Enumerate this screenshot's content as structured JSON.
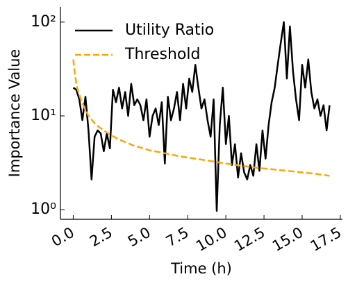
{
  "chart_data": {
    "type": "line",
    "x_label": "Time (h)",
    "y_label": "Importance Value",
    "log_y": true,
    "legend": "upper left",
    "xlim": [
      -0.84,
      17.64
    ],
    "ylim": [
      0.79,
      145
    ],
    "xticks": [
      {
        "value": 0,
        "label": "0.0"
      },
      2.5,
      {
        "value": 5,
        "label": "5.0"
      },
      7.5,
      {
        "value": 10,
        "label": "10.0"
      },
      12.5,
      {
        "value": 15,
        "label": "15.0"
      },
      17.5
    ],
    "yticks": [
      {
        "value": 1,
        "label": "10⁰"
      },
      {
        "value": 10,
        "label": "10¹"
      },
      {
        "value": 100,
        "label": "10²"
      }
    ],
    "series": [
      {
        "name": "Utility Ratio",
        "color": "#000000",
        "dash": false,
        "x": [
          0,
          0.2,
          0.4,
          0.6,
          0.8,
          1.0,
          1.2,
          1.4,
          1.6,
          1.8,
          2.0,
          2.2,
          2.4,
          2.6,
          2.8,
          3.0,
          3.2,
          3.4,
          3.6,
          3.8,
          4.0,
          4.2,
          4.4,
          4.6,
          4.8,
          5.0,
          5.2,
          5.4,
          5.6,
          5.8,
          6.0,
          6.2,
          6.4,
          6.6,
          6.8,
          7.0,
          7.2,
          7.4,
          7.6,
          7.8,
          8.0,
          8.2,
          8.4,
          8.6,
          8.8,
          9.0,
          9.2,
          9.4,
          9.6,
          9.8,
          10.0,
          10.2,
          10.4,
          10.6,
          10.8,
          11.0,
          11.2,
          11.4,
          11.6,
          11.8,
          12.0,
          12.2,
          12.4,
          12.6,
          12.8,
          13.0,
          13.2,
          13.4,
          13.6,
          13.8,
          14.0,
          14.2,
          14.4,
          14.6,
          14.8,
          15.0,
          15.2,
          15.4,
          15.6,
          15.8,
          16.0,
          16.2,
          16.4,
          16.6,
          16.8
        ],
        "values": [
          20,
          19,
          15,
          9,
          16,
          7,
          2.1,
          6,
          7,
          6.5,
          4.2,
          6.5,
          4.5,
          19,
          14,
          20,
          12,
          18,
          10,
          22,
          13,
          15,
          13,
          9,
          15,
          6,
          10,
          12,
          8,
          14,
          3.1,
          16,
          9,
          12,
          18,
          9,
          22,
          12,
          25,
          18,
          35,
          20,
          12,
          15,
          9,
          6,
          15,
          0.97,
          8,
          20,
          5,
          10,
          3,
          5,
          2.2,
          4,
          2.5,
          2.1,
          3,
          2.3,
          5,
          2.6,
          7,
          3.5,
          8,
          14,
          20,
          35,
          60,
          100,
          25,
          90,
          30,
          15,
          9,
          35,
          20,
          40,
          18,
          12,
          15,
          10,
          13,
          7,
          13
        ]
      },
      {
        "name": "Threshold",
        "color": "#ffa500",
        "dash": true,
        "x": [
          0,
          0.1,
          0.25,
          0.5,
          0.75,
          1,
          1.5,
          2,
          2.5,
          3,
          4,
          5,
          6,
          7,
          8,
          9,
          10,
          11,
          12,
          13,
          14,
          15,
          16,
          16.8
        ],
        "values": [
          40,
          28,
          20,
          15,
          12,
          10,
          8,
          7,
          6.2,
          5.6,
          4.8,
          4.3,
          4,
          3.7,
          3.5,
          3.3,
          3.1,
          2.95,
          2.8,
          2.7,
          2.6,
          2.5,
          2.4,
          2.3
        ]
      }
    ]
  }
}
